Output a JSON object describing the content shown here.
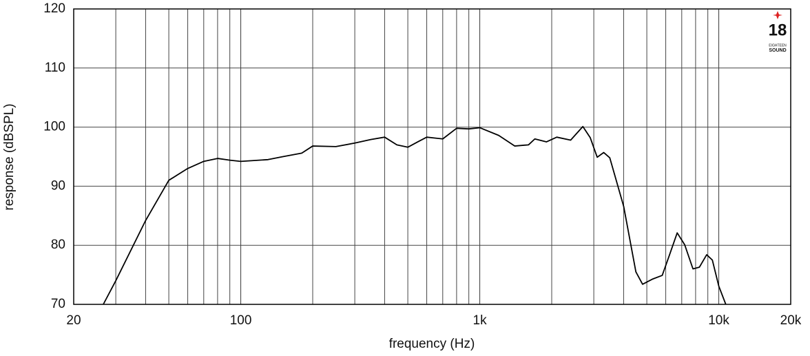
{
  "chart_data": {
    "type": "line",
    "xlabel": "frequency (Hz)",
    "ylabel": "response (dBSPL)",
    "xscale": "log",
    "grid": true,
    "minor_grid": true,
    "color": "#000000",
    "x": [
      26.6,
      30,
      40,
      50,
      60,
      70,
      80,
      90,
      100,
      130,
      150,
      180,
      200,
      250,
      300,
      350,
      400,
      450,
      500,
      550,
      600,
      700,
      800,
      900,
      1000,
      1200,
      1400,
      1600,
      1700,
      1900,
      2100,
      2400,
      2700,
      2900,
      3100,
      3300,
      3500,
      4000,
      4500,
      4800,
      5300,
      5800,
      6200,
      6700,
      7200,
      7800,
      8300,
      8900,
      9400,
      10000,
      10700
    ],
    "values": [
      70,
      74,
      84.2,
      91,
      93,
      94.2,
      94.7,
      94.4,
      94.2,
      94.5,
      95,
      95.6,
      96.8,
      96.7,
      97.3,
      97.9,
      98.3,
      97,
      96.6,
      97.5,
      98.3,
      98,
      99.8,
      99.7,
      99.9,
      98.6,
      96.8,
      97,
      98,
      97.5,
      98.3,
      97.8,
      100.1,
      98.2,
      94.9,
      95.7,
      94.8,
      86.6,
      75.5,
      73.4,
      74.3,
      74.9,
      78.2,
      82.1,
      80.1,
      76,
      76.3,
      78.4,
      77.5,
      73.1,
      70
    ],
    "xlim": [
      20,
      20000
    ],
    "xticks": [
      20,
      100,
      {
        "value": 1000,
        "label": "1k"
      },
      {
        "value": 10000,
        "label": "10k"
      },
      {
        "value": 20000,
        "label": "20k"
      }
    ],
    "ylim": [
      70,
      120
    ],
    "yticks": [
      70,
      80,
      90,
      100,
      110,
      120
    ]
  },
  "logo": {
    "number": "18",
    "line1": "EIGHTEEN",
    "line2": "SOUND"
  }
}
